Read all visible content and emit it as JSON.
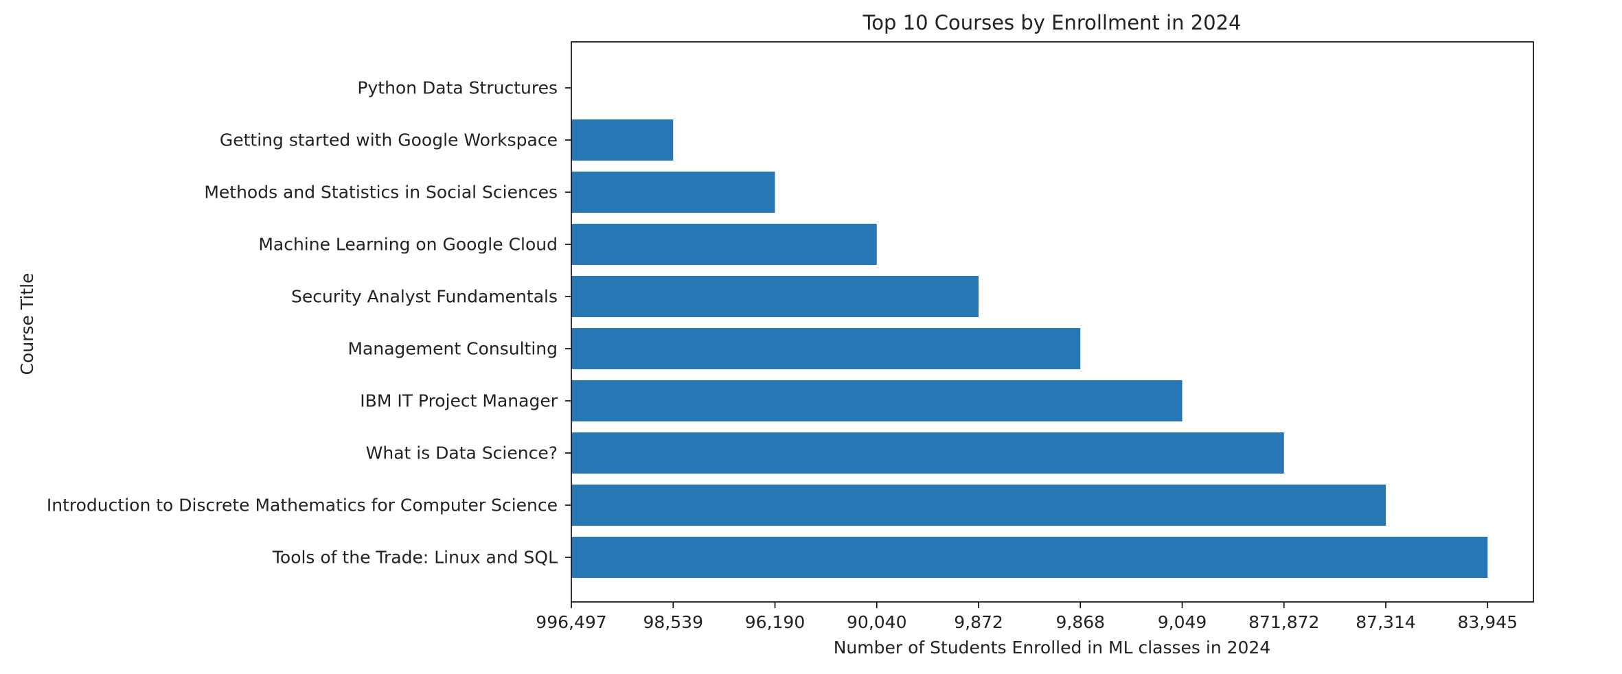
{
  "chart_data": {
    "type": "bar",
    "orientation": "horizontal",
    "title": "Top 10 Courses by Enrollment in 2024",
    "xlabel": "Number of Students Enrolled in ML classes in 2024",
    "ylabel": "Course Title",
    "categories": [
      "Python Data Structures",
      "Getting started with Google Workspace",
      "Methods and Statistics in Social Sciences",
      "Machine Learning on Google Cloud",
      "Security Analyst Fundamentals",
      "Management Consulting",
      "IBM IT Project Manager",
      "What is Data Science?",
      "Introduction to Discrete Mathematics for Computer Science",
      "Tools of the Trade: Linux and SQL"
    ],
    "values": [
      0,
      1,
      2,
      3,
      4,
      5,
      6,
      7,
      8,
      9
    ],
    "xtick_labels": [
      "996,497",
      "98,539",
      "96,190",
      "90,040",
      "9,872",
      "9,868",
      "9,049",
      "871,872",
      "87,314",
      "83,945"
    ],
    "xlim": [
      0,
      9.45
    ],
    "bar_color": "#2677b4",
    "grid": false,
    "legend": "none"
  }
}
